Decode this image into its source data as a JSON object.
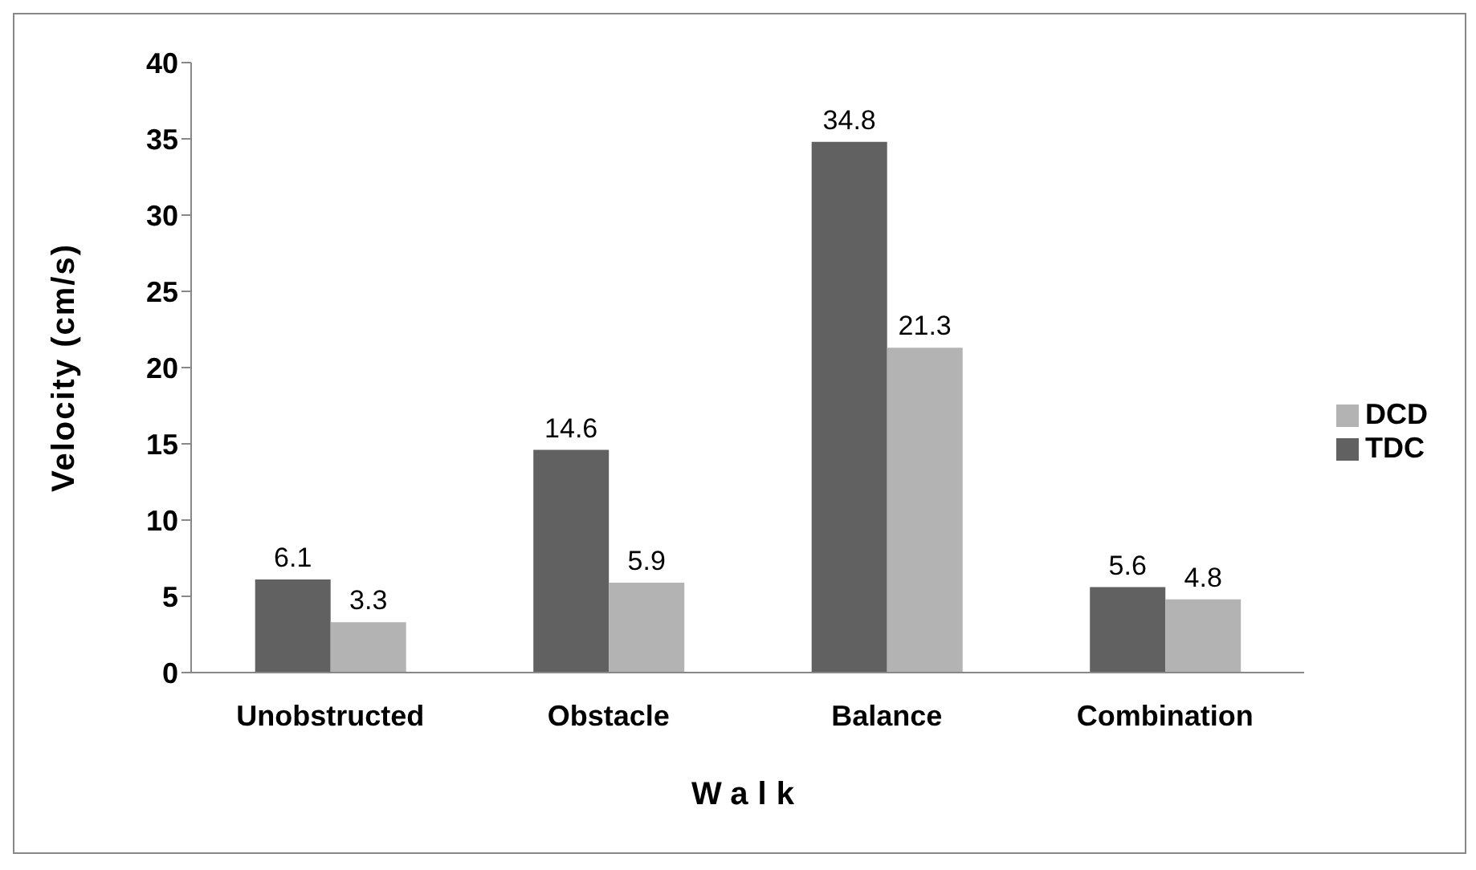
{
  "chart_data": {
    "type": "bar",
    "xlabel": "Walk",
    "ylabel": "Velocity (cm/s)",
    "categories": [
      "Unobstructed",
      "Obstacle",
      "Balance",
      "Combination"
    ],
    "series": [
      {
        "name": "TDC",
        "color": "#616161",
        "values": [
          6.1,
          14.6,
          34.8,
          5.6
        ]
      },
      {
        "name": "DCD",
        "color": "#b3b3b3",
        "values": [
          3.3,
          5.9,
          21.3,
          4.8
        ]
      }
    ],
    "ylim": [
      0,
      40
    ],
    "yticks": [
      0,
      5,
      10,
      15,
      20,
      25,
      30,
      35,
      40
    ],
    "data_labels": true,
    "legend": "right",
    "grid": false
  }
}
